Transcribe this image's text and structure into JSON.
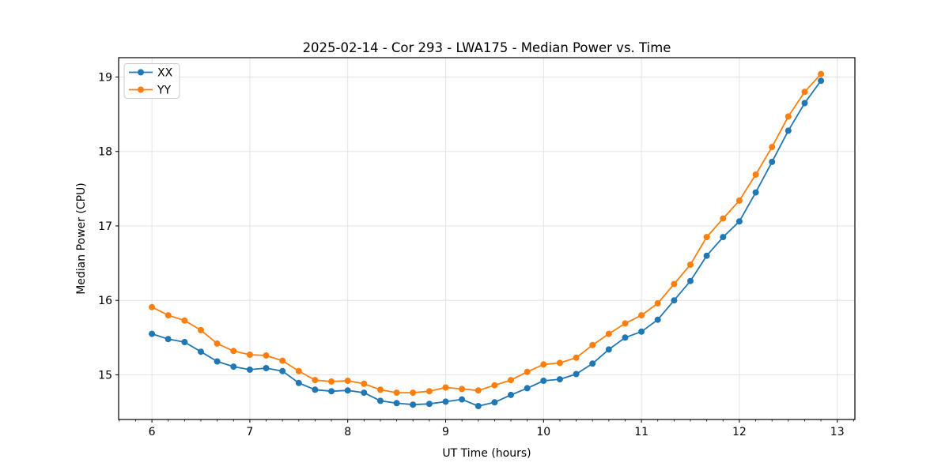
{
  "figure": {
    "title": "2025-02-14 - Cor 293 - LWA175 - Median Power vs. Time",
    "xlabel": "UT Time (hours)",
    "ylabel": "Median Power (CPU)"
  },
  "chart_data": {
    "type": "line",
    "title": "2025-02-14 - Cor 293 - LWA175 - Median Power vs. Time",
    "xlabel": "UT Time (hours)",
    "ylabel": "Median Power (CPU)",
    "x": [
      6.0,
      6.1667,
      6.3333,
      6.5,
      6.6667,
      6.8333,
      7.0,
      7.1667,
      7.3333,
      7.5,
      7.6667,
      7.8333,
      8.0,
      8.1667,
      8.3333,
      8.5,
      8.6667,
      8.8333,
      9.0,
      9.1667,
      9.3333,
      9.5,
      9.6667,
      9.8333,
      10.0,
      10.1667,
      10.3333,
      10.5,
      10.6667,
      10.8333,
      11.0,
      11.1667,
      11.3333,
      11.5,
      11.6667,
      11.8333,
      12.0,
      12.1667,
      12.3333,
      12.5,
      12.6667,
      12.8333
    ],
    "series": [
      {
        "name": "XX",
        "color": "#1f77b4",
        "marker": "circle",
        "values": [
          15.55,
          15.48,
          15.44,
          15.31,
          15.18,
          15.11,
          15.07,
          15.09,
          15.05,
          14.89,
          14.8,
          14.78,
          14.79,
          14.76,
          14.65,
          14.62,
          14.6,
          14.61,
          14.64,
          14.67,
          14.58,
          14.63,
          14.73,
          14.82,
          14.92,
          14.94,
          15.01,
          15.15,
          15.34,
          15.5,
          15.58,
          15.74,
          16.0,
          16.26,
          16.6,
          16.85,
          17.06,
          17.45,
          17.86,
          18.28,
          18.65,
          18.95
        ]
      },
      {
        "name": "YY",
        "color": "#ff7f0e",
        "marker": "circle",
        "values": [
          15.91,
          15.8,
          15.73,
          15.6,
          15.42,
          15.32,
          15.27,
          15.26,
          15.19,
          15.05,
          14.93,
          14.91,
          14.92,
          14.88,
          14.8,
          14.76,
          14.76,
          14.78,
          14.83,
          14.81,
          14.79,
          14.86,
          14.93,
          15.04,
          15.14,
          15.16,
          15.23,
          15.4,
          15.55,
          15.69,
          15.8,
          15.96,
          16.22,
          16.48,
          16.85,
          17.1,
          17.34,
          17.69,
          18.06,
          18.47,
          18.8,
          19.04
        ]
      }
    ],
    "xlim": [
      5.66,
      13.18
    ],
    "ylim": [
      14.4,
      19.26
    ],
    "xticks": [
      6,
      7,
      8,
      9,
      10,
      11,
      12,
      13
    ],
    "yticks": [
      15,
      16,
      17,
      18,
      19
    ],
    "x_minor_per_major": 6,
    "grid": true,
    "legend": {
      "position": "upper-left",
      "entries": [
        "XX",
        "YY"
      ]
    }
  },
  "style": {
    "grid_color": "#e3e3e3",
    "axis_color": "#000000",
    "legend_border": "#cccccc",
    "background": "#ffffff"
  }
}
